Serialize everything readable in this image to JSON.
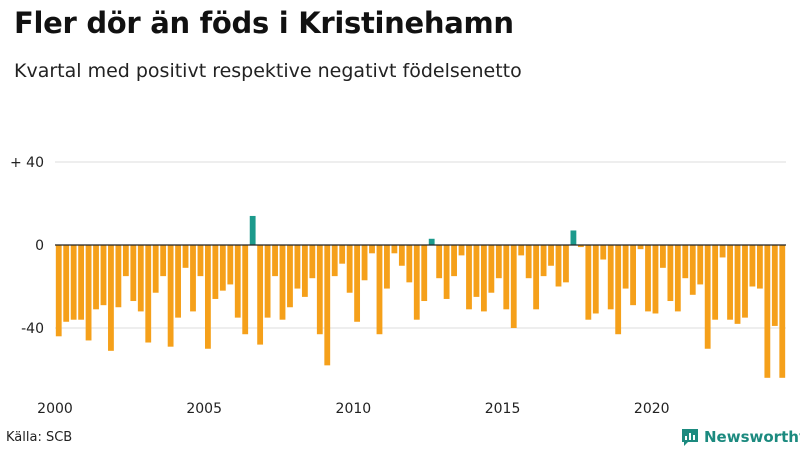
{
  "chart_data": {
    "type": "bar",
    "title": "Fler dör än föds i Kristinehamn",
    "subtitle": "Kvartal med positivt respektive negativt födelsenetto",
    "xlabel": "",
    "ylabel": "",
    "ylim": [
      -65,
      42
    ],
    "grid": true,
    "y_ticks": [
      {
        "value": 40,
        "label": "+ 40"
      },
      {
        "value": 0,
        "label": "0"
      },
      {
        "value": -40,
        "label": "-40"
      }
    ],
    "x_ticks": [
      {
        "value": 2000,
        "label": "2000"
      },
      {
        "value": 2005,
        "label": "2005"
      },
      {
        "value": 2010,
        "label": "2010"
      },
      {
        "value": 2015,
        "label": "2015"
      },
      {
        "value": 2020,
        "label": "2020"
      }
    ],
    "start_year": 2000,
    "periods_per_year": 4,
    "colors": {
      "negative": "#f5a01a",
      "positive": "#1c9a8c",
      "zero_line": "#222222",
      "grid": "#dcdcdc"
    },
    "values": [
      -44,
      -37,
      -36,
      -36,
      -46,
      -31,
      -29,
      -51,
      -30,
      -15,
      -27,
      -32,
      -47,
      -23,
      -15,
      -49,
      -35,
      -11,
      -32,
      -15,
      -50,
      -26,
      -22,
      -19,
      -35,
      -43,
      14,
      -48,
      -35,
      -15,
      -36,
      -30,
      -21,
      -25,
      -16,
      -43,
      -58,
      -15,
      -9,
      -23,
      -37,
      -17,
      -4,
      -43,
      -21,
      -4,
      -10,
      -18,
      -36,
      -27,
      3,
      -16,
      -26,
      -15,
      -5,
      -31,
      -25,
      -32,
      -23,
      -16,
      -31,
      -40,
      -5,
      -16,
      -31,
      -15,
      -10,
      -20,
      -18,
      7,
      -1,
      -36,
      -33,
      -7,
      -31,
      -43,
      -21,
      -29,
      -2,
      -32,
      -33,
      -11,
      -27,
      -32,
      -16,
      -24,
      -19,
      -50,
      -36,
      -6,
      -36,
      -38,
      -35,
      -20,
      -21,
      -64,
      -39,
      -64
    ]
  },
  "source": {
    "label": "Källa: SCB"
  },
  "brand": {
    "name": "Newsworthy"
  }
}
